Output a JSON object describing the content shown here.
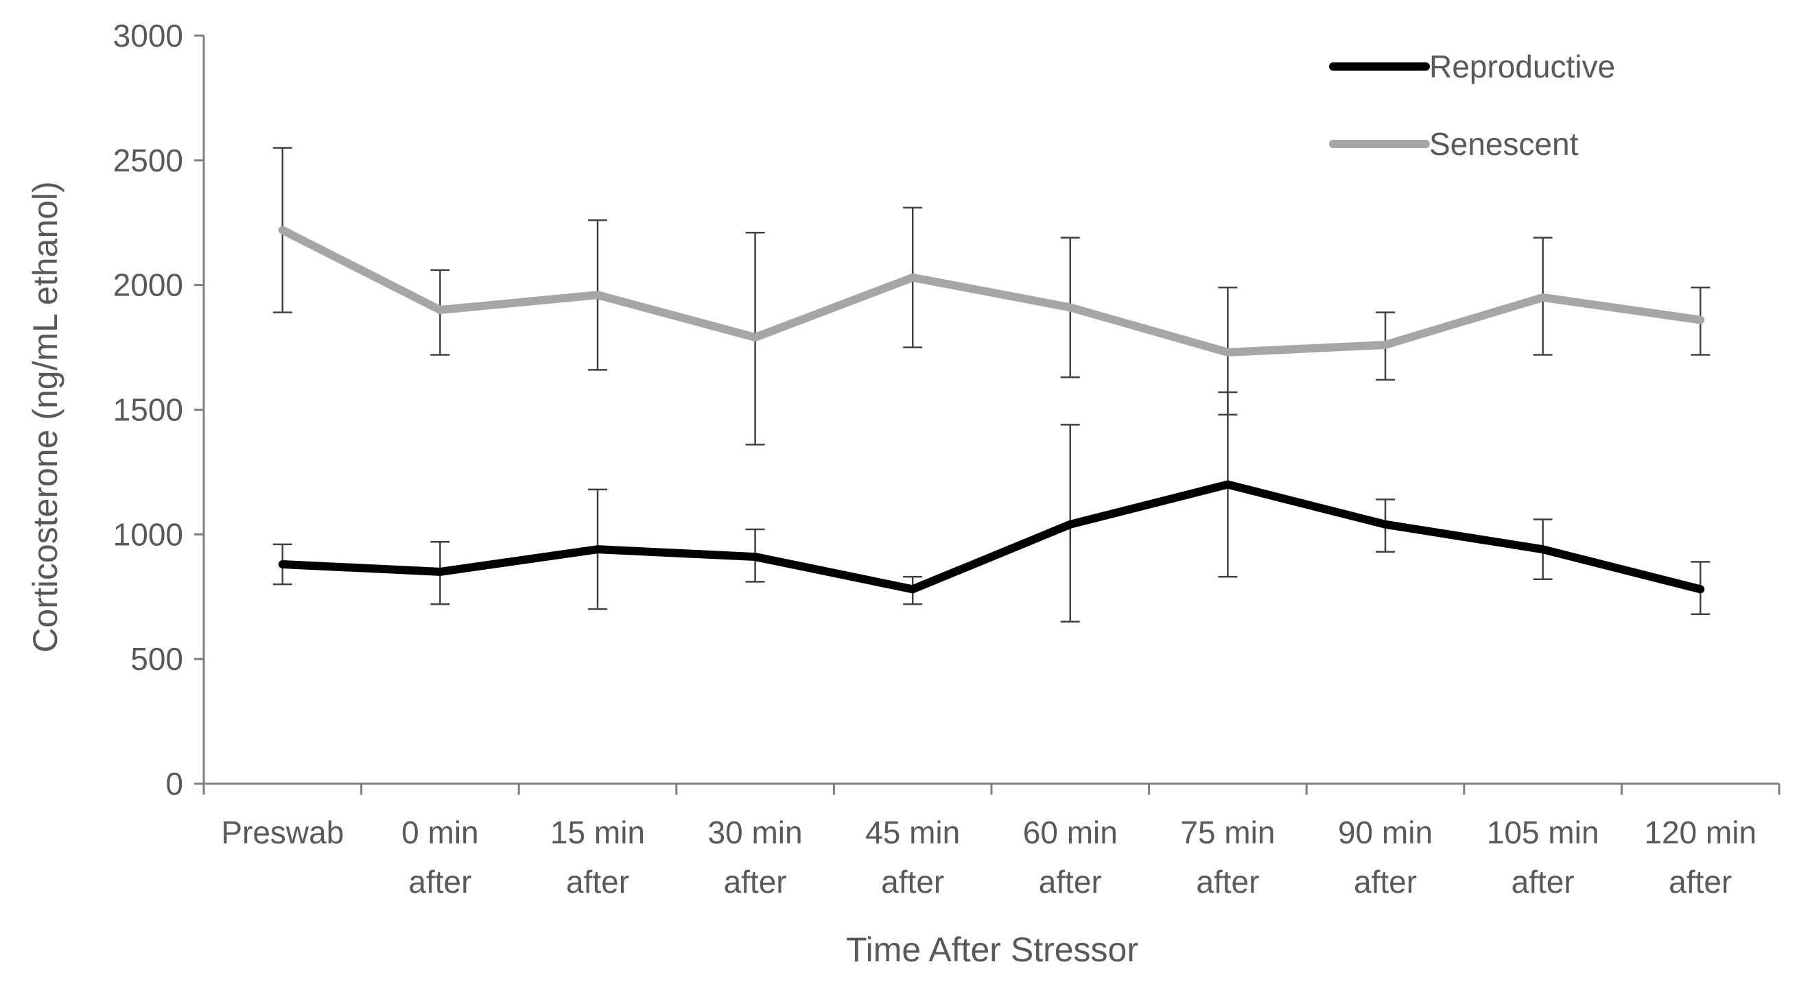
{
  "chart_data": {
    "type": "line",
    "title": "",
    "xlabel": "Time After Stressor",
    "ylabel": "Corticosterone (ng/mL ethanol)",
    "ylim": [
      0,
      3000
    ],
    "yticks": [
      "0",
      "500",
      "1000",
      "1500",
      "2000",
      "2500",
      "3000"
    ],
    "categories": [
      [
        "Preswab"
      ],
      [
        "0 min",
        "after"
      ],
      [
        "15 min",
        "after"
      ],
      [
        "30 min",
        "after"
      ],
      [
        "45 min",
        "after"
      ],
      [
        "60 min",
        "after"
      ],
      [
        "75 min",
        "after"
      ],
      [
        "90 min",
        "after"
      ],
      [
        "105 min",
        "after"
      ],
      [
        "120 min",
        "after"
      ]
    ],
    "legend_position": "top-right",
    "series": [
      {
        "name": "Reproductive",
        "color": "#000000",
        "values": [
          880,
          850,
          940,
          910,
          780,
          1040,
          1200,
          1040,
          940,
          780
        ],
        "err_low": [
          800,
          720,
          700,
          810,
          720,
          650,
          830,
          930,
          820,
          680
        ],
        "err_high": [
          960,
          970,
          1180,
          1020,
          830,
          1440,
          1570,
          1140,
          1060,
          890
        ]
      },
      {
        "name": "Senescent",
        "color": "#a6a6a6",
        "values": [
          2220,
          1900,
          1960,
          1790,
          2030,
          1910,
          1730,
          1760,
          1950,
          1860
        ],
        "err_low": [
          1890,
          1720,
          1660,
          1360,
          1750,
          1630,
          1480,
          1620,
          1720,
          1720
        ],
        "err_high": [
          2550,
          2060,
          2260,
          2210,
          2310,
          2190,
          1990,
          1890,
          2190,
          1990
        ]
      }
    ]
  }
}
